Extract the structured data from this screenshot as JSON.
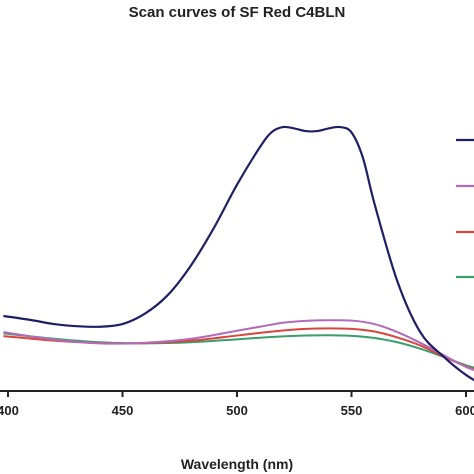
{
  "chart_data": {
    "type": "line",
    "title": "Scan curves of SF Red C4BLN",
    "xlabel": "Wavelength (nm)",
    "ylabel": "",
    "xlim": [
      400,
      610
    ],
    "ylim": [
      0,
      1
    ],
    "xticks": [
      400,
      450,
      500,
      550,
      600
    ],
    "xtick_labels": [
      "400",
      "450",
      "500",
      "550",
      "600"
    ],
    "grid": false,
    "legend_position": "right",
    "series": [
      {
        "color": "#1f1f66",
        "x": [
          398,
          410,
          420,
          430,
          440,
          450,
          460,
          470,
          480,
          490,
          500,
          510,
          515,
          520,
          525,
          530,
          535,
          540,
          545,
          550,
          555,
          560,
          570,
          580,
          590,
          600,
          610
        ],
        "y": [
          0.25,
          0.235,
          0.22,
          0.212,
          0.21,
          0.22,
          0.26,
          0.33,
          0.44,
          0.58,
          0.74,
          0.88,
          0.935,
          0.955,
          0.95,
          0.94,
          0.94,
          0.95,
          0.955,
          0.935,
          0.84,
          0.67,
          0.38,
          0.19,
          0.1,
          0.03,
          -0.02
        ]
      },
      {
        "color": "#b36ab8",
        "x": [
          398,
          420,
          440,
          460,
          480,
          500,
          510,
          520,
          530,
          540,
          550,
          560,
          570,
          580,
          590,
          600,
          610
        ],
        "y": [
          0.19,
          0.162,
          0.148,
          0.15,
          0.165,
          0.195,
          0.21,
          0.225,
          0.232,
          0.234,
          0.233,
          0.22,
          0.19,
          0.15,
          0.105,
          0.06,
          0.03
        ]
      },
      {
        "color": "#d9453c",
        "x": [
          398,
          420,
          440,
          460,
          480,
          500,
          510,
          520,
          530,
          540,
          550,
          560,
          570,
          580,
          590,
          600,
          610
        ],
        "y": [
          0.175,
          0.158,
          0.149,
          0.149,
          0.158,
          0.177,
          0.187,
          0.196,
          0.202,
          0.204,
          0.202,
          0.192,
          0.17,
          0.14,
          0.1,
          0.062,
          0.035
        ]
      },
      {
        "color": "#3a9e6a",
        "x": [
          398,
          420,
          440,
          460,
          480,
          500,
          510,
          520,
          530,
          540,
          550,
          560,
          570,
          580,
          590,
          600,
          610
        ],
        "y": [
          0.185,
          0.165,
          0.152,
          0.148,
          0.152,
          0.163,
          0.169,
          0.174,
          0.177,
          0.178,
          0.176,
          0.168,
          0.152,
          0.128,
          0.098,
          0.066,
          0.042
        ]
      }
    ]
  }
}
